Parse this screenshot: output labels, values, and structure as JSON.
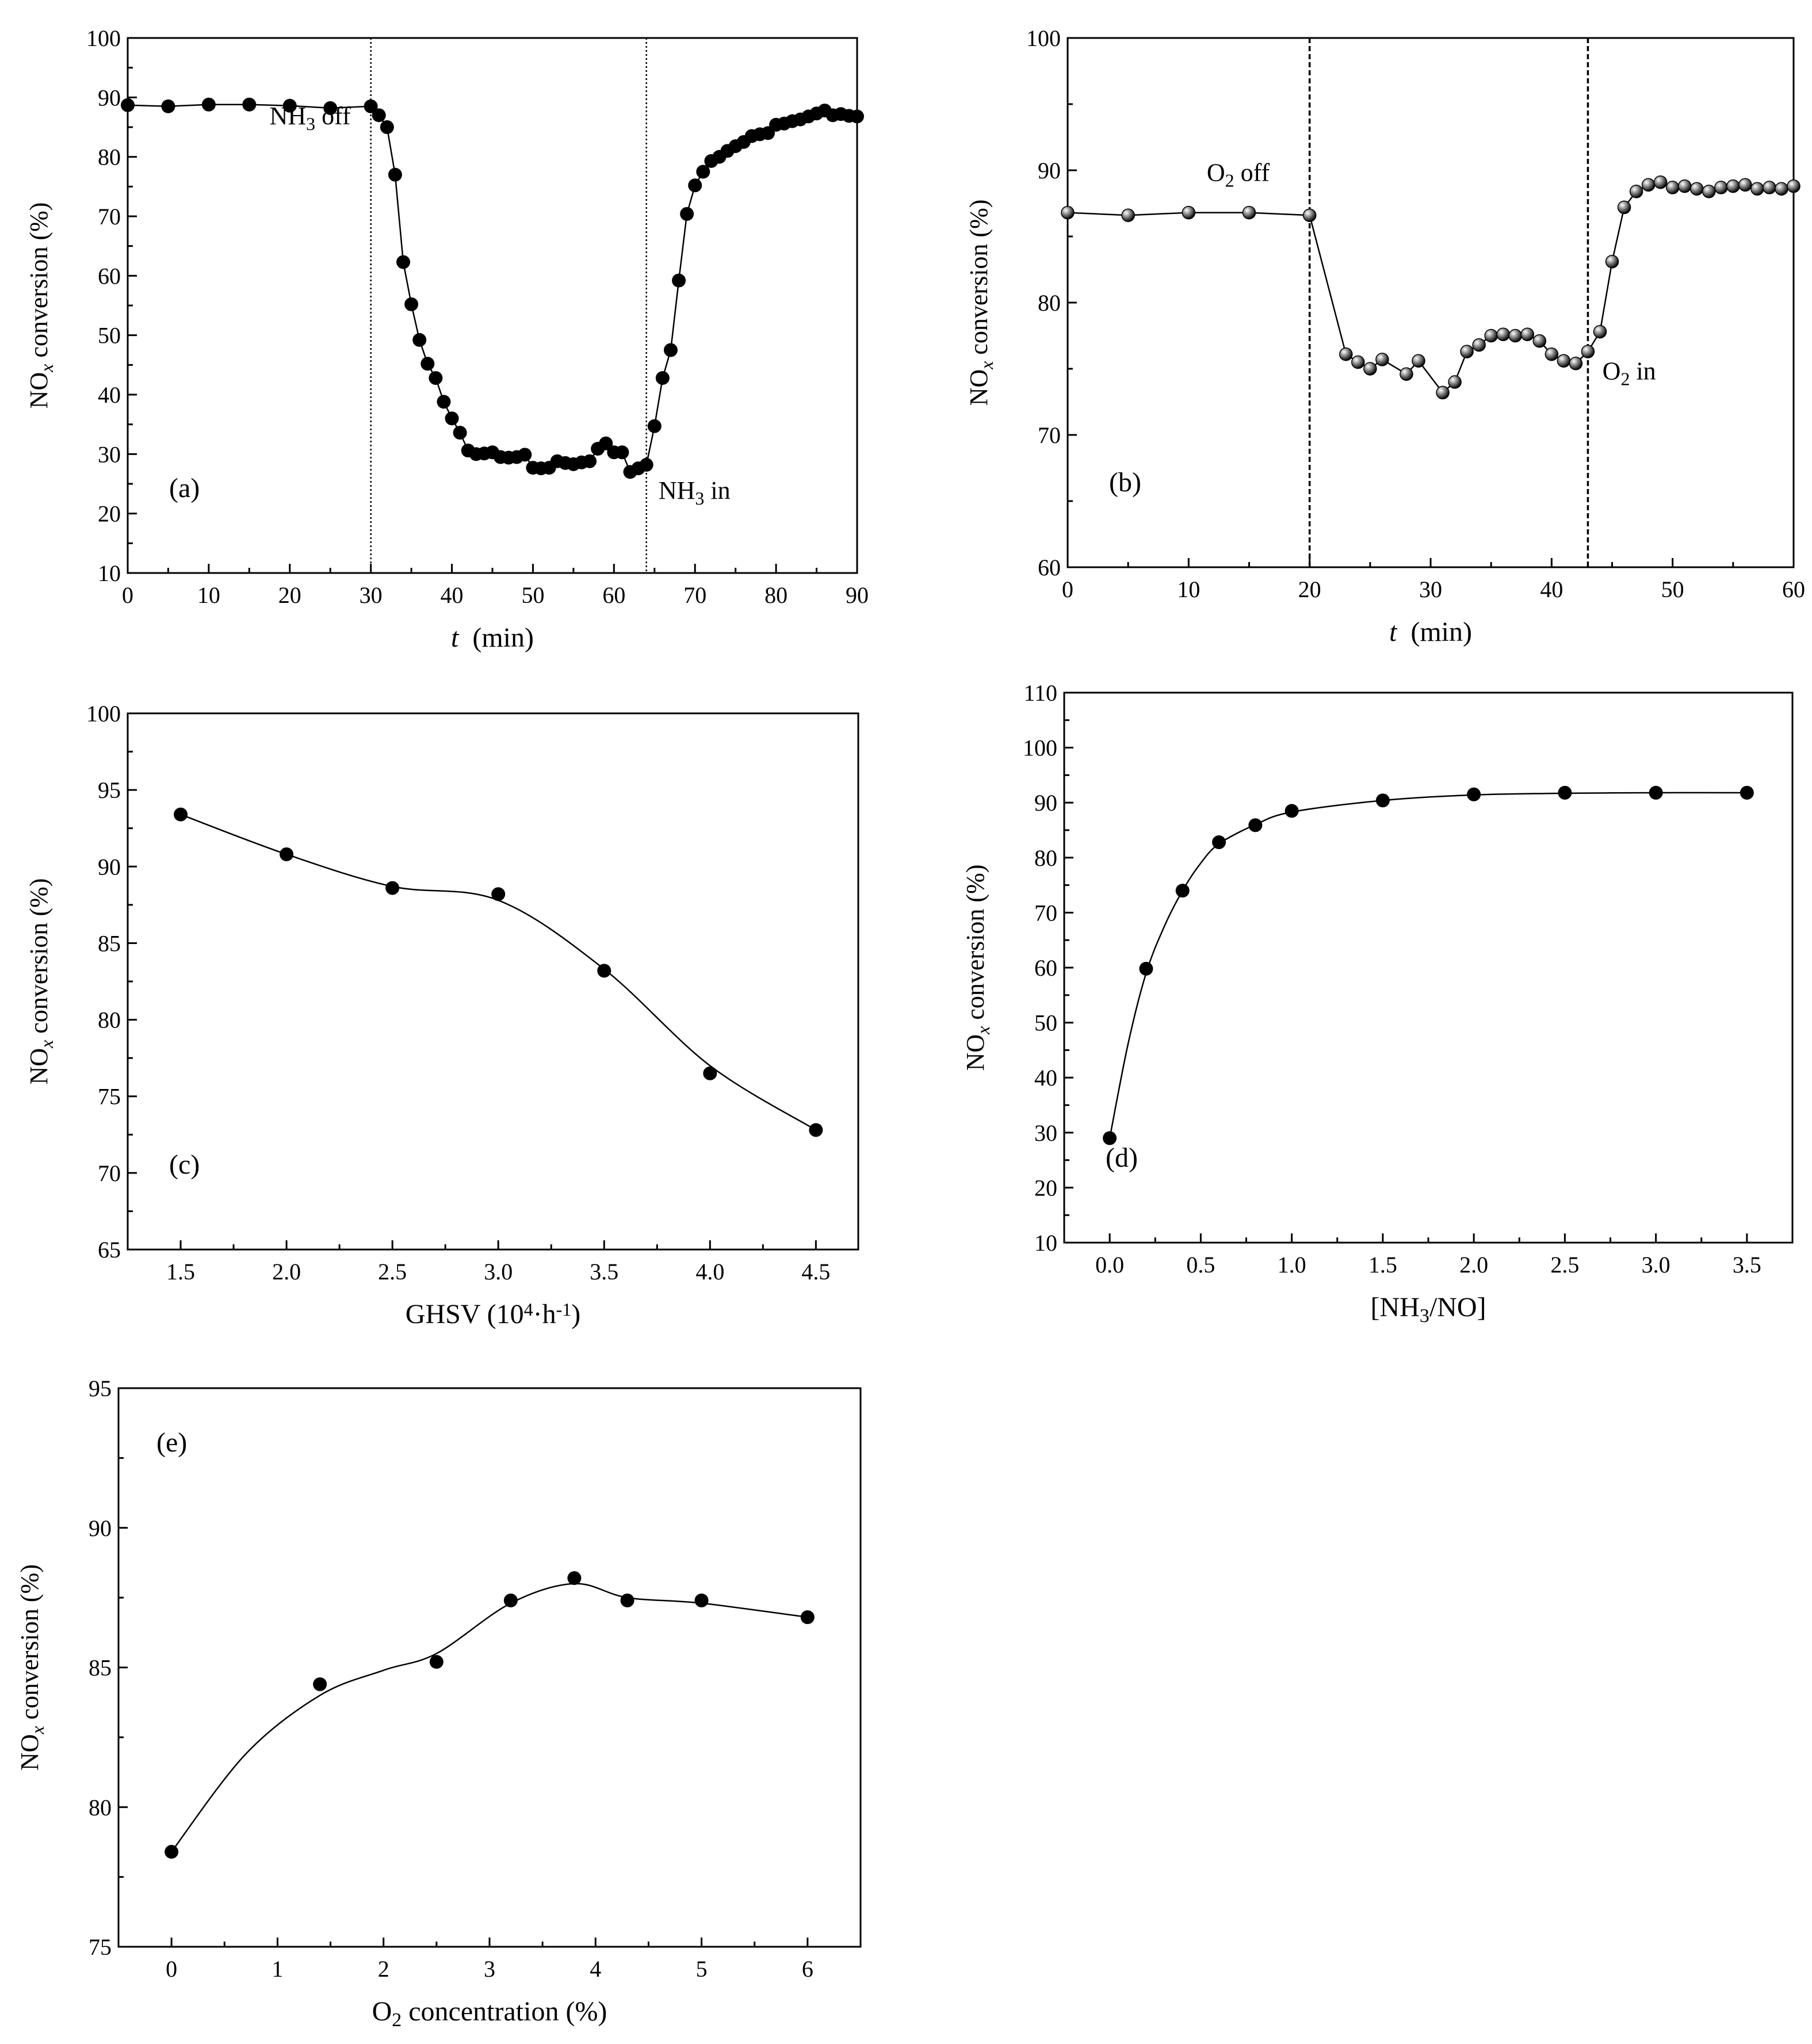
{
  "chart_data": [
    {
      "id": "a",
      "type": "line",
      "panel_label": "(a)",
      "xlabel": {
        "var": "t",
        "unit": "(min)"
      },
      "ylabel": {
        "pre": "NO",
        "sub": "x",
        "post": "conversion (%)"
      },
      "xlim": [
        0,
        90
      ],
      "ylim": [
        10,
        100
      ],
      "xticks": [
        0,
        10,
        20,
        30,
        40,
        50,
        60,
        70,
        80,
        90
      ],
      "yticks": [
        10,
        20,
        30,
        40,
        50,
        60,
        70,
        80,
        90,
        100
      ],
      "xtick_decimals": 0,
      "marker": "filled-circle",
      "curve": "polyline",
      "vlines": [
        30,
        64
      ],
      "vline_style": "dotted",
      "annotations": [
        {
          "pre": "NH",
          "sub": "3",
          "post": " off",
          "x": 17.5,
          "y": 85.5
        },
        {
          "pre": "NH",
          "sub": "3",
          "post": " in",
          "x": 65.5,
          "y": 22.5
        }
      ],
      "series": [
        {
          "name": "NOx conversion",
          "x": [
            0,
            5,
            10,
            15,
            20,
            25,
            30,
            31,
            32,
            33,
            34,
            35,
            36,
            37,
            38,
            39,
            40,
            41,
            42,
            43,
            44,
            45,
            46,
            47,
            48,
            49,
            50,
            51,
            52,
            53,
            54,
            55,
            56,
            57,
            58,
            59,
            60,
            61,
            62,
            63,
            64,
            65,
            66,
            67,
            68,
            69,
            70,
            71,
            72,
            73,
            74,
            75,
            76,
            77,
            78,
            79,
            80,
            81,
            82,
            83,
            84,
            85,
            86,
            87,
            88,
            89,
            90
          ],
          "y": [
            88.7,
            88.5,
            88.8,
            88.8,
            88.6,
            88.2,
            88.5,
            87.0,
            85.0,
            77.0,
            62.3,
            55.2,
            49.2,
            45.2,
            42.8,
            38.8,
            36.0,
            33.6,
            30.6,
            30.0,
            30.1,
            30.3,
            29.5,
            29.4,
            29.5,
            29.9,
            27.7,
            27.6,
            27.7,
            28.8,
            28.5,
            28.3,
            28.6,
            28.8,
            30.9,
            31.8,
            30.3,
            30.3,
            27.0,
            27.6,
            28.2,
            34.7,
            42.8,
            47.5,
            59.2,
            70.4,
            75.2,
            77.5,
            79.3,
            80.0,
            81.0,
            81.8,
            82.5,
            83.5,
            83.8,
            84.0,
            85.4,
            85.6,
            86.0,
            86.3,
            86.8,
            87.3,
            87.8,
            87.0,
            87.2,
            86.9,
            86.8
          ]
        }
      ]
    },
    {
      "id": "b",
      "type": "line",
      "panel_label": "(b)",
      "xlabel": {
        "var": "t",
        "unit": "(min)"
      },
      "ylabel": {
        "pre": "NO",
        "sub": "x",
        "post": "conversion (%)"
      },
      "xlim": [
        0,
        60
      ],
      "ylim": [
        60,
        100
      ],
      "xticks": [
        0,
        10,
        20,
        30,
        40,
        50,
        60
      ],
      "yticks": [
        60,
        70,
        80,
        90,
        100
      ],
      "xtick_decimals": 0,
      "marker": "shaded-sphere",
      "curve": "polyline",
      "vlines": [
        20,
        43
      ],
      "vline_style": "dashed",
      "annotations": [
        {
          "pre": "O",
          "sub": "2",
          "post": " off",
          "x": 11.5,
          "y": 89.2
        },
        {
          "pre": "O",
          "sub": "2",
          "post": " in",
          "x": 44.2,
          "y": 74.2
        }
      ],
      "series": [
        {
          "name": "NOx conversion",
          "x": [
            0,
            5,
            10,
            15,
            20,
            23,
            24,
            25,
            26,
            28,
            29,
            31,
            32,
            33,
            34,
            35,
            36,
            37,
            38,
            39,
            40,
            41,
            42,
            43,
            44,
            45,
            46,
            47,
            48,
            49,
            50,
            51,
            52,
            53,
            54,
            55,
            56,
            57,
            58,
            59,
            60
          ],
          "y": [
            86.8,
            86.6,
            86.8,
            86.8,
            86.6,
            76.1,
            75.5,
            75.0,
            75.7,
            74.6,
            75.6,
            73.2,
            74.0,
            76.3,
            76.8,
            77.5,
            77.6,
            77.5,
            77.6,
            77.1,
            76.1,
            75.6,
            75.4,
            76.3,
            77.8,
            83.1,
            87.2,
            88.4,
            88.9,
            89.1,
            88.7,
            88.8,
            88.6,
            88.4,
            88.7,
            88.8,
            88.9,
            88.6,
            88.7,
            88.6,
            88.8
          ]
        }
      ]
    },
    {
      "id": "c",
      "type": "line",
      "panel_label": "(c)",
      "xlabel": {
        "text": "GHSV  (10",
        "sup1": "4",
        "mid": "·h",
        "sup2": "-1",
        "end": ")"
      },
      "ylabel": {
        "pre": "NO",
        "sub": "x",
        "post": "conversion (%)"
      },
      "xlim": [
        1.25,
        4.7
      ],
      "ylim": [
        65,
        100
      ],
      "xticks": [
        1.5,
        2.0,
        2.5,
        3.0,
        3.5,
        4.0,
        4.5
      ],
      "yticks": [
        65,
        70,
        75,
        80,
        85,
        90,
        95,
        100
      ],
      "xtick_decimals": 1,
      "marker": "filled-circle",
      "curve": "smooth",
      "fit_points": [
        [
          1.5,
          93.4
        ],
        [
          2.0,
          90.8
        ],
        [
          2.5,
          88.7
        ],
        [
          3.0,
          87.8
        ],
        [
          3.5,
          83.3
        ],
        [
          4.0,
          77.0
        ],
        [
          4.5,
          72.8
        ]
      ],
      "vlines": [],
      "annotations": [],
      "series": [
        {
          "name": "NOx conversion",
          "x": [
            1.5,
            2.0,
            2.5,
            3.0,
            3.5,
            4.0,
            4.5
          ],
          "y": [
            93.4,
            90.8,
            88.6,
            88.2,
            83.2,
            76.5,
            72.8
          ]
        }
      ]
    },
    {
      "id": "d",
      "type": "line",
      "panel_label": "(d)",
      "xlabel": {
        "text": "[NH",
        "sub": "3",
        "post": "/NO]"
      },
      "ylabel": {
        "pre": "NO",
        "sub": "x",
        "post": "conversion (%)"
      },
      "xlim": [
        -0.25,
        3.75
      ],
      "ylim": [
        10,
        110
      ],
      "xticks": [
        0.0,
        0.5,
        1.0,
        1.5,
        2.0,
        2.5,
        3.0,
        3.5
      ],
      "yticks": [
        10,
        20,
        30,
        40,
        50,
        60,
        70,
        80,
        90,
        100,
        110
      ],
      "xtick_decimals": 1,
      "marker": "filled-circle",
      "curve": "smooth",
      "fit_points": [
        [
          0.0,
          29.0
        ],
        [
          0.1,
          46.0
        ],
        [
          0.2,
          59.0
        ],
        [
          0.3,
          67.5
        ],
        [
          0.4,
          74.0
        ],
        [
          0.5,
          79.0
        ],
        [
          0.6,
          82.5
        ],
        [
          0.8,
          86.0
        ],
        [
          1.0,
          88.3
        ],
        [
          1.5,
          90.4
        ],
        [
          2.0,
          91.4
        ],
        [
          2.5,
          91.7
        ],
        [
          3.0,
          91.8
        ],
        [
          3.5,
          91.8
        ]
      ],
      "vlines": [],
      "annotations": [],
      "series": [
        {
          "name": "NOx conversion",
          "x": [
            0.0,
            0.2,
            0.4,
            0.6,
            0.8,
            1.0,
            1.5,
            2.0,
            2.5,
            3.0,
            3.5
          ],
          "y": [
            29.0,
            59.8,
            74.0,
            82.8,
            85.9,
            88.5,
            90.4,
            91.5,
            91.8,
            91.8,
            91.8
          ]
        }
      ]
    },
    {
      "id": "e",
      "type": "line",
      "panel_label": "(e)",
      "xlabel": {
        "text": "O",
        "sub": "2",
        "post": " concentration (%)"
      },
      "ylabel": {
        "pre": "NO",
        "sub": "x",
        "post": "conversion (%)"
      },
      "xlim": [
        -0.5,
        6.5
      ],
      "ylim": [
        75,
        95
      ],
      "xticks": [
        0,
        1,
        2,
        3,
        4,
        5,
        6
      ],
      "yticks": [
        75,
        80,
        85,
        90,
        95
      ],
      "xtick_decimals": 0,
      "marker": "filled-circle",
      "curve": "smooth",
      "fit_points": [
        [
          0.0,
          78.4
        ],
        [
          0.7,
          81.9
        ],
        [
          1.4,
          84.0
        ],
        [
          2.0,
          84.9
        ],
        [
          2.5,
          85.5
        ],
        [
          3.2,
          87.3
        ],
        [
          3.8,
          88.0
        ],
        [
          4.3,
          87.5
        ],
        [
          5.0,
          87.3
        ],
        [
          6.0,
          86.8
        ]
      ],
      "vlines": [],
      "annotations": [],
      "series": [
        {
          "name": "NOx conversion",
          "x": [
            0.0,
            1.4,
            2.5,
            3.2,
            3.8,
            4.3,
            5.0,
            6.0
          ],
          "y": [
            78.4,
            84.4,
            85.2,
            87.4,
            88.2,
            87.4,
            87.4,
            86.8
          ]
        }
      ]
    }
  ]
}
